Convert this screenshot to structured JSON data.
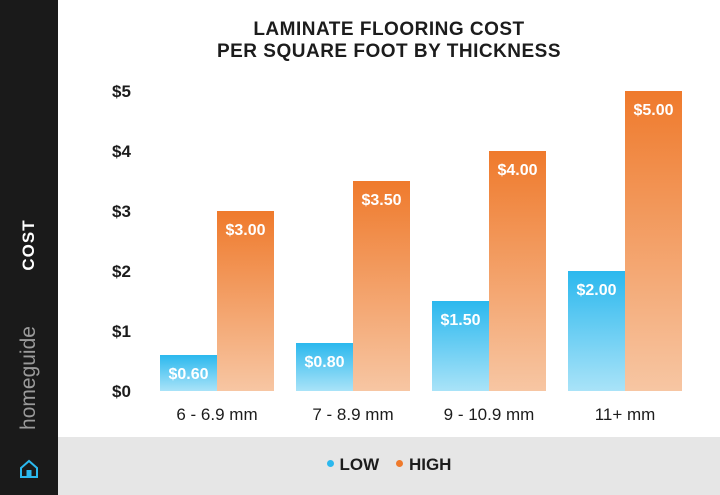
{
  "y_axis_label": "COST",
  "brand": {
    "name": "homeguide",
    "icon": "house-icon"
  },
  "title_lines": [
    "LAMINATE FLOORING COST",
    "PER SQUARE FOOT BY THICKNESS"
  ],
  "colors": {
    "low_top": "#2bb8ee",
    "low_bottom": "#a9e3f8",
    "high_top": "#ef7a2c",
    "high_bottom": "#f7c6a3",
    "text": "#1c1c1c",
    "sidebar": "#1a1a1a"
  },
  "chart_data": {
    "type": "bar",
    "title": "LAMINATE FLOORING COST PER SQUARE FOOT BY THICKNESS",
    "xlabel": "",
    "ylabel": "COST",
    "categories": [
      "6 - 6.9 mm",
      "7 - 8.9 mm",
      "9 - 10.9 mm",
      "11+ mm"
    ],
    "series": [
      {
        "name": "LOW",
        "values": [
          0.6,
          0.8,
          1.5,
          2.0
        ],
        "labels": [
          "$0.60",
          "$0.80",
          "$1.50",
          "$2.00"
        ]
      },
      {
        "name": "HIGH",
        "values": [
          3.0,
          3.5,
          4.0,
          5.0
        ],
        "labels": [
          "$3.00",
          "$3.50",
          "$4.00",
          "$5.00"
        ]
      }
    ],
    "ylim": [
      0,
      5
    ],
    "y_ticks": [
      0,
      1,
      2,
      3,
      4,
      5
    ],
    "y_tick_labels": [
      "$0",
      "$1",
      "$2",
      "$3",
      "$4",
      "$5"
    ],
    "legend_position": "bottom",
    "grid": false
  }
}
